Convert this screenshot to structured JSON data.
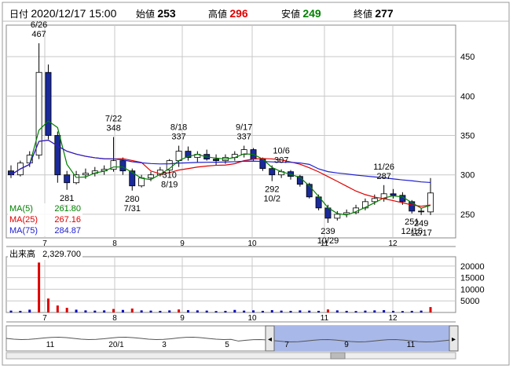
{
  "header": {
    "date_label": "日付",
    "date_value": "2020/12/17 15:00",
    "open_label": "始値",
    "open_value": "253",
    "high_label": "高値",
    "high_value": "296",
    "low_label": "安値",
    "low_value": "249",
    "close_label": "終値",
    "close_value": "277"
  },
  "colors": {
    "high": "#e00000",
    "low": "#008000",
    "ma5": "#008000",
    "ma25": "#e00000",
    "ma75": "#2020d0",
    "volume_up": "#e00000",
    "volume_down": "#0000c0",
    "grid": "#c8c8c8",
    "navigator_fill": "#a8b8e8"
  },
  "ma_legend": [
    {
      "label": "MA(5)",
      "value": "261.80",
      "color": "#008000"
    },
    {
      "label": "MA(25)",
      "value": "267.16",
      "color": "#e00000"
    },
    {
      "label": "MA(75)",
      "value": "284.87",
      "color": "#2020d0"
    }
  ],
  "volume": {
    "label": "出来高",
    "value": "2,329.700"
  },
  "chart_data": {
    "type": "candlestick",
    "price_ticks": [
      "450",
      "400",
      "350",
      "300",
      "250"
    ],
    "volume_ticks": [
      "20000",
      "15000",
      "10000",
      "5000"
    ],
    "month_ticks": [
      "7",
      "8",
      "9",
      "10",
      "11",
      "12"
    ],
    "annotations": [
      {
        "text": "6/26",
        "value": 467,
        "pos": "above"
      },
      {
        "text": "467",
        "value": 467,
        "pos": "above"
      },
      {
        "text": "7/22",
        "value": 348,
        "pos": "above"
      },
      {
        "text": "348",
        "value": 348,
        "pos": "above"
      },
      {
        "text": "8/18",
        "value": 337,
        "pos": "above"
      },
      {
        "text": "337",
        "value": 337,
        "pos": "above"
      },
      {
        "text": "9/17",
        "value": 337,
        "pos": "above"
      },
      {
        "text": "337",
        "value": 337,
        "pos": "above"
      },
      {
        "text": "10/6",
        "value": 307,
        "pos": "above"
      },
      {
        "text": "307",
        "value": 307,
        "pos": "above"
      },
      {
        "text": "11/26",
        "value": 287,
        "pos": "above"
      },
      {
        "text": "287",
        "value": 287,
        "pos": "above"
      },
      {
        "text": "281",
        "value": 281,
        "pos": "below"
      },
      {
        "text": "7/3",
        "value": 281,
        "pos": "below"
      },
      {
        "text": "280",
        "value": 280,
        "pos": "below"
      },
      {
        "text": "7/31",
        "value": 280,
        "pos": "below"
      },
      {
        "text": "310",
        "value": 310,
        "pos": "below"
      },
      {
        "text": "8/19",
        "value": 310,
        "pos": "below"
      },
      {
        "text": "292",
        "value": 292,
        "pos": "below"
      },
      {
        "text": "10/2",
        "value": 292,
        "pos": "below"
      },
      {
        "text": "239",
        "value": 239,
        "pos": "below"
      },
      {
        "text": "10/29",
        "value": 239,
        "pos": "below"
      },
      {
        "text": "249",
        "value": 249,
        "pos": "below"
      },
      {
        "text": "12/17",
        "value": 249,
        "pos": "below"
      },
      {
        "text": "251",
        "value": 251,
        "pos": "below"
      },
      {
        "text": "12/15",
        "value": 251,
        "pos": "below"
      }
    ],
    "navigator_ticks": [
      "11",
      "20/1",
      "3",
      "5",
      "7",
      "9",
      "11"
    ],
    "ohlc_sample": [
      {
        "o": 305,
        "h": 312,
        "l": 296,
        "c": 300
      },
      {
        "o": 300,
        "h": 318,
        "l": 298,
        "c": 315
      },
      {
        "o": 315,
        "h": 330,
        "l": 310,
        "c": 325
      },
      {
        "o": 325,
        "h": 467,
        "l": 320,
        "c": 430
      },
      {
        "o": 430,
        "h": 440,
        "l": 345,
        "c": 350
      },
      {
        "o": 350,
        "h": 355,
        "l": 290,
        "c": 300
      },
      {
        "o": 300,
        "h": 305,
        "l": 281,
        "c": 290
      },
      {
        "o": 290,
        "h": 305,
        "l": 288,
        "c": 300
      },
      {
        "o": 300,
        "h": 308,
        "l": 295,
        "c": 302
      },
      {
        "o": 302,
        "h": 310,
        "l": 298,
        "c": 305
      },
      {
        "o": 305,
        "h": 312,
        "l": 300,
        "c": 307
      },
      {
        "o": 307,
        "h": 348,
        "l": 304,
        "c": 318
      },
      {
        "o": 318,
        "h": 322,
        "l": 300,
        "c": 305
      },
      {
        "o": 305,
        "h": 308,
        "l": 280,
        "c": 286
      },
      {
        "o": 286,
        "h": 300,
        "l": 284,
        "c": 296
      },
      {
        "o": 296,
        "h": 304,
        "l": 292,
        "c": 300
      },
      {
        "o": 300,
        "h": 310,
        "l": 298,
        "c": 306
      },
      {
        "o": 306,
        "h": 320,
        "l": 302,
        "c": 318
      },
      {
        "o": 318,
        "h": 337,
        "l": 310,
        "c": 330
      },
      {
        "o": 330,
        "h": 336,
        "l": 318,
        "c": 322
      },
      {
        "o": 322,
        "h": 330,
        "l": 316,
        "c": 326
      },
      {
        "o": 326,
        "h": 332,
        "l": 318,
        "c": 320
      },
      {
        "o": 320,
        "h": 326,
        "l": 312,
        "c": 318
      },
      {
        "o": 318,
        "h": 326,
        "l": 314,
        "c": 322
      },
      {
        "o": 322,
        "h": 330,
        "l": 318,
        "c": 326
      },
      {
        "o": 326,
        "h": 337,
        "l": 322,
        "c": 332
      },
      {
        "o": 332,
        "h": 334,
        "l": 318,
        "c": 320
      },
      {
        "o": 320,
        "h": 322,
        "l": 305,
        "c": 308
      },
      {
        "o": 308,
        "h": 312,
        "l": 292,
        "c": 300
      },
      {
        "o": 300,
        "h": 307,
        "l": 296,
        "c": 304
      },
      {
        "o": 304,
        "h": 306,
        "l": 294,
        "c": 298
      },
      {
        "o": 298,
        "h": 300,
        "l": 285,
        "c": 288
      },
      {
        "o": 288,
        "h": 290,
        "l": 270,
        "c": 272
      },
      {
        "o": 272,
        "h": 275,
        "l": 255,
        "c": 258
      },
      {
        "o": 258,
        "h": 262,
        "l": 239,
        "c": 245
      },
      {
        "o": 245,
        "h": 254,
        "l": 242,
        "c": 250
      },
      {
        "o": 250,
        "h": 256,
        "l": 246,
        "c": 252
      },
      {
        "o": 252,
        "h": 262,
        "l": 250,
        "c": 258
      },
      {
        "o": 258,
        "h": 270,
        "l": 255,
        "c": 266
      },
      {
        "o": 266,
        "h": 275,
        "l": 262,
        "c": 270
      },
      {
        "o": 270,
        "h": 287,
        "l": 266,
        "c": 276
      },
      {
        "o": 276,
        "h": 282,
        "l": 270,
        "c": 274
      },
      {
        "o": 274,
        "h": 278,
        "l": 262,
        "c": 266
      },
      {
        "o": 266,
        "h": 268,
        "l": 251,
        "c": 254
      },
      {
        "o": 254,
        "h": 258,
        "l": 249,
        "c": 253
      },
      {
        "o": 253,
        "h": 296,
        "l": 249,
        "c": 277
      }
    ],
    "volume_sample": [
      800,
      700,
      1200,
      21500,
      6000,
      3000,
      2000,
      1200,
      900,
      800,
      900,
      1500,
      1100,
      1700,
      900,
      800,
      700,
      900,
      1300,
      1000,
      900,
      800,
      600,
      700,
      1100,
      800,
      900,
      700,
      1000,
      800,
      700,
      900,
      800,
      700,
      1300,
      900,
      700,
      600,
      800,
      900,
      1000,
      700,
      600,
      700,
      800,
      2329.7
    ]
  }
}
